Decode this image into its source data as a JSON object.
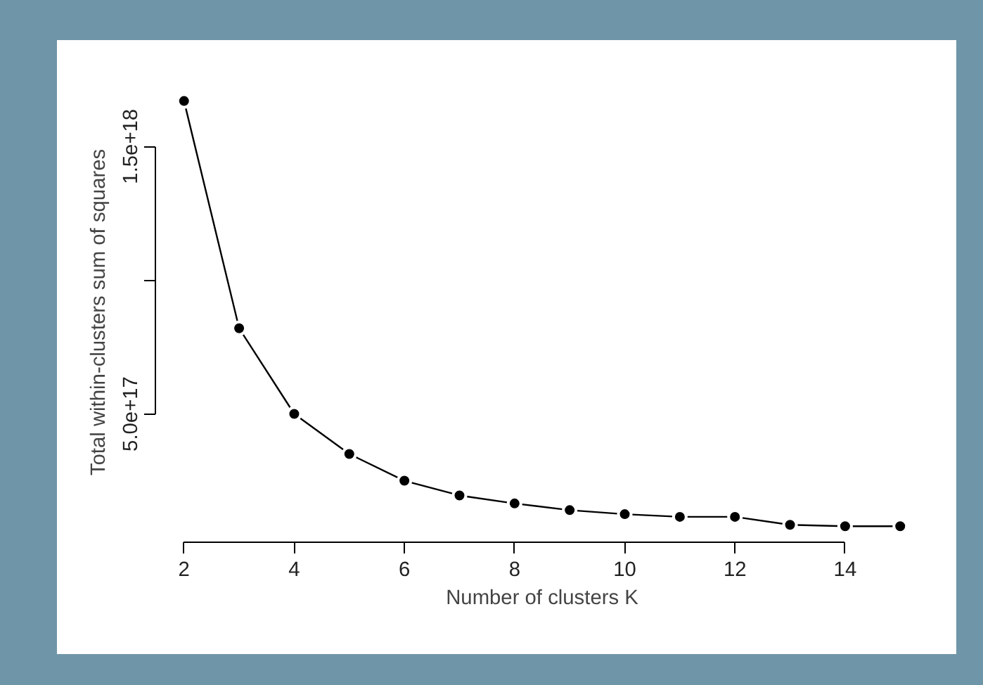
{
  "chart_data": {
    "type": "line",
    "xlabel": "Number of clusters K",
    "ylabel": "Total within-clusters sum of squares",
    "x": [
      2,
      3,
      4,
      5,
      6,
      7,
      8,
      9,
      10,
      11,
      12,
      13,
      14,
      15
    ],
    "series": [
      {
        "color": "#000000",
        "values": [
          1.67e+18,
          8.2e+17,
          5e+17,
          3.5e+17,
          2.5e+17,
          1.95e+17,
          1.65e+17,
          1.4e+17,
          1.25e+17,
          1.15e+17,
          1.15e+17,
          8.5e+16,
          8e+16,
          8e+16
        ]
      }
    ],
    "xlim": [
      1.48,
      15.52
    ],
    "ylim": [
      2e+16,
      1.74e+18
    ],
    "xticks": [
      2,
      4,
      6,
      8,
      10,
      12,
      14
    ],
    "yticks": [
      {
        "value": 5e+17,
        "label": "5.0e+17"
      },
      {
        "value": 1e+18,
        "label": null
      },
      {
        "value": 1.5e+18,
        "label": "1.5e+18"
      }
    ],
    "marker": "circle",
    "line_style": "solid"
  }
}
